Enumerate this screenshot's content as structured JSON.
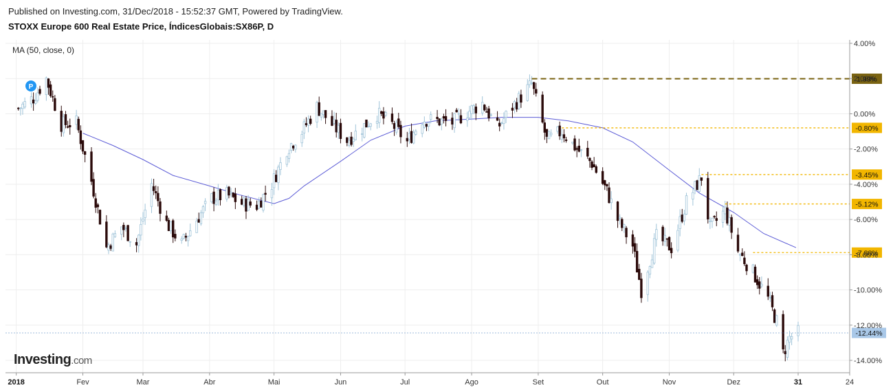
{
  "header": {
    "published": "Published on Investing.com, 31/Dec/2018 - 15:52:37 GMT, Powered by TradingView.",
    "title": "STOXX Europe 600 Real Estate Price, ÍndicesGlobais:SX86P, D"
  },
  "indicator_label": "MA (50, close, 0)",
  "logo": {
    "main": "Investing",
    "suffix": ".com"
  },
  "marker": {
    "label": "P",
    "color": "#2196f3"
  },
  "colors": {
    "up_candle": "#9fc3d8",
    "down_candle": "#2b0a0a",
    "ma_line": "#5b5bd6",
    "level_dashed": "#f2b600",
    "level_top": "#7a6312",
    "current": "#a9c8e8",
    "grid": "#eeeeee"
  },
  "chart_data": {
    "type": "candlestick",
    "y_unit": "%",
    "ylim": [
      -14.8,
      4.0
    ],
    "y_ticks": [
      "4.00%",
      "2.00%",
      "0.00%",
      "-2.00%",
      "-4.00%",
      "-6.00%",
      "-8.00%",
      "-10.00%",
      "-12.00%",
      "-14.00%"
    ],
    "y_tick_values": [
      4,
      2,
      0,
      -2,
      -4,
      -6,
      -8,
      -10,
      -12,
      -14
    ],
    "x_ticks": [
      "2018",
      "Fev",
      "Mar",
      "Abr",
      "Mai",
      "Jun",
      "Jul",
      "Ago",
      "Set",
      "Out",
      "Nov",
      "Dez",
      "31",
      "24"
    ],
    "x_tick_bold": [
      "2018",
      "31"
    ],
    "x_tick_dates": [
      "2018-01-01",
      "2018-02-01",
      "2018-03-01",
      "2018-04-01",
      "2018-05-01",
      "2018-06-01",
      "2018-07-01",
      "2018-08-01",
      "2018-09-01",
      "2018-10-01",
      "2018-11-01",
      "2018-12-01",
      "2018-12-31",
      "2019-01-24"
    ],
    "x_range": [
      "2017-12-27",
      "2019-01-24"
    ],
    "levels": [
      {
        "label": "1.99%",
        "value": 1.99,
        "style": "dashed",
        "from": "2018-08-29"
      },
      {
        "label": "-0.80%",
        "value": -0.8,
        "style": "dotted",
        "from": "2018-09-12"
      },
      {
        "label": "-3.45%",
        "value": -3.45,
        "style": "dotted",
        "from": "2018-11-16"
      },
      {
        "label": "-5.12%",
        "value": -5.12,
        "style": "dotted",
        "from": "2018-11-27"
      },
      {
        "label": "-7.88%",
        "value": -7.88,
        "style": "dotted",
        "from": "2018-12-10"
      }
    ],
    "current": {
      "label": "-12.44%",
      "value": -12.44
    },
    "close_path": [
      [
        "2018-01-02",
        0.3
      ],
      [
        "2018-01-09",
        0.9
      ],
      [
        "2018-01-15",
        2.0
      ],
      [
        "2018-01-22",
        -0.6
      ],
      [
        "2018-01-29",
        -0.5
      ],
      [
        "2018-02-05",
        -3.8
      ],
      [
        "2018-02-12",
        -7.6
      ],
      [
        "2018-02-19",
        -6.4
      ],
      [
        "2018-02-26",
        -7.4
      ],
      [
        "2018-03-05",
        -4.0
      ],
      [
        "2018-03-12",
        -6.2
      ],
      [
        "2018-03-19",
        -7.4
      ],
      [
        "2018-03-26",
        -6.0
      ],
      [
        "2018-04-02",
        -4.8
      ],
      [
        "2018-04-09",
        -4.6
      ],
      [
        "2018-04-16",
        -5.1
      ],
      [
        "2018-04-23",
        -5.2
      ],
      [
        "2018-04-30",
        -4.0
      ],
      [
        "2018-05-07",
        -2.0
      ],
      [
        "2018-05-14",
        -1.0
      ],
      [
        "2018-05-21",
        0.4
      ],
      [
        "2018-05-28",
        -0.6
      ],
      [
        "2018-06-04",
        -1.5
      ],
      [
        "2018-06-11",
        -0.8
      ],
      [
        "2018-06-18",
        0.0
      ],
      [
        "2018-06-25",
        -0.6
      ],
      [
        "2018-07-02",
        -1.6
      ],
      [
        "2018-07-09",
        -0.3
      ],
      [
        "2018-07-16",
        -0.4
      ],
      [
        "2018-07-23",
        -0.5
      ],
      [
        "2018-07-30",
        0.1
      ],
      [
        "2018-08-06",
        0.6
      ],
      [
        "2018-08-13",
        -0.8
      ],
      [
        "2018-08-20",
        0.4
      ],
      [
        "2018-08-29",
        1.7
      ],
      [
        "2018-09-05",
        -1.5
      ],
      [
        "2018-09-12",
        -1.0
      ],
      [
        "2018-09-19",
        -2.0
      ],
      [
        "2018-09-26",
        -2.8
      ],
      [
        "2018-10-03",
        -4.4
      ],
      [
        "2018-10-08",
        -6.0
      ],
      [
        "2018-10-15",
        -7.5
      ],
      [
        "2018-10-19",
        -10.0
      ],
      [
        "2018-10-26",
        -7.0
      ],
      [
        "2018-11-02",
        -7.6
      ],
      [
        "2018-11-09",
        -5.0
      ],
      [
        "2018-11-16",
        -3.6
      ],
      [
        "2018-11-20",
        -6.5
      ],
      [
        "2018-11-27",
        -5.5
      ],
      [
        "2018-12-03",
        -7.8
      ],
      [
        "2018-12-10",
        -9.0
      ],
      [
        "2018-12-17",
        -10.5
      ],
      [
        "2018-12-21",
        -11.8
      ],
      [
        "2018-12-24",
        -13.6
      ],
      [
        "2018-12-27",
        -12.7
      ],
      [
        "2018-12-31",
        -12.44
      ]
    ],
    "moving_average": {
      "label": "MA (50, close, 0)",
      "points": [
        [
          "2018-02-01",
          -1.1
        ],
        [
          "2018-02-15",
          -1.8
        ],
        [
          "2018-03-01",
          -2.6
        ],
        [
          "2018-03-15",
          -3.5
        ],
        [
          "2018-04-01",
          -4.1
        ],
        [
          "2018-04-15",
          -4.6
        ],
        [
          "2018-05-01",
          -5.1
        ],
        [
          "2018-05-08",
          -4.8
        ],
        [
          "2018-05-15",
          -4.1
        ],
        [
          "2018-06-01",
          -2.7
        ],
        [
          "2018-06-15",
          -1.5
        ],
        [
          "2018-07-01",
          -0.7
        ],
        [
          "2018-07-15",
          -0.4
        ],
        [
          "2018-08-01",
          -0.3
        ],
        [
          "2018-08-15",
          -0.2
        ],
        [
          "2018-09-01",
          -0.2
        ],
        [
          "2018-09-15",
          -0.4
        ],
        [
          "2018-10-01",
          -0.8
        ],
        [
          "2018-10-15",
          -1.6
        ],
        [
          "2018-11-01",
          -3.2
        ],
        [
          "2018-11-15",
          -4.5
        ],
        [
          "2018-12-01",
          -5.6
        ],
        [
          "2018-12-15",
          -6.8
        ],
        [
          "2018-12-30",
          -7.6
        ]
      ]
    }
  }
}
